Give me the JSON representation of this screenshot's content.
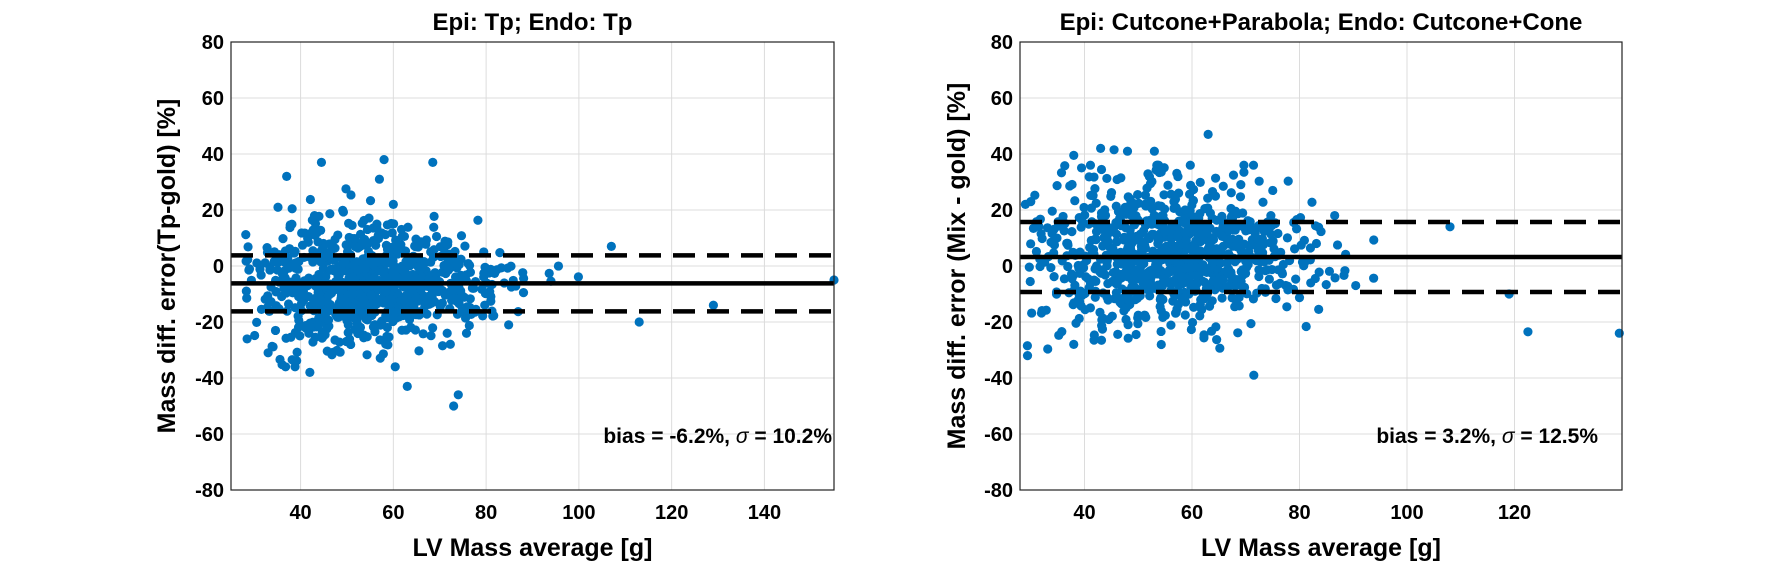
{
  "colors": {
    "points": "#0072BD",
    "lines": "#000000",
    "grid": "#dcdcdc"
  },
  "chart_data": [
    {
      "type": "scatter",
      "title": "Epi: Tp; Endo: Tp",
      "xlabel": "LV Mass average [g]",
      "ylabel": "Mass diff. error(Tp-gold)  [%]",
      "xlim": [
        25,
        155
      ],
      "ylim": [
        -80,
        80
      ],
      "xticks": [
        40,
        60,
        80,
        100,
        120,
        140
      ],
      "yticks": [
        -80,
        -60,
        -40,
        -20,
        0,
        20,
        40,
        60,
        80
      ],
      "grid": true,
      "bias": -6.2,
      "sigma": 10.2,
      "upper_loa": 3.8,
      "lower_loa": -16.2,
      "annotation": {
        "prefix": "bias = -6.2%, ",
        "symbol": "σ",
        "suffix": " = 10.2%"
      },
      "cloud": {
        "mean_x": 55,
        "sd_x": 13,
        "min_x": 27,
        "max_x": 112,
        "sd_y": 10.2,
        "count": 900,
        "seed": 11
      },
      "x": [
        44.5,
        58,
        68.5,
        37,
        57,
        74,
        63,
        73,
        33,
        42,
        43,
        60,
        129,
        155,
        113,
        107
      ],
      "y": [
        37,
        38,
        37,
        32,
        31,
        -46,
        -43,
        -50,
        -31,
        -38,
        18,
        22,
        -14,
        -5,
        -20,
        7
      ]
    },
    {
      "type": "scatter",
      "title": "Epi: Cutcone+Parabola; Endo: Cutcone+Cone",
      "xlabel": "LV Mass average [g]",
      "ylabel": "Mass diff. error (Mix - gold)  [%]",
      "xlim": [
        28,
        140
      ],
      "ylim": [
        -80,
        80
      ],
      "xticks": [
        40,
        60,
        80,
        100,
        120
      ],
      "yticks": [
        -80,
        -60,
        -40,
        -20,
        0,
        20,
        40,
        60,
        80
      ],
      "grid": true,
      "bias": 3.2,
      "sigma": 12.5,
      "upper_loa": 15.7,
      "lower_loa": -9.3,
      "annotation": {
        "prefix": "bias = 3.2%, ",
        "symbol": "σ",
        "suffix": " = 12.5%"
      },
      "cloud": {
        "mean_x": 55,
        "sd_x": 13,
        "min_x": 29,
        "max_x": 112,
        "sd_y": 12.5,
        "count": 900,
        "seed": 23
      },
      "x": [
        63,
        45.5,
        48,
        38,
        43,
        53,
        71.5,
        38,
        122.5,
        139.5,
        119,
        108,
        29,
        30
      ],
      "y": [
        47,
        41.5,
        41,
        39.5,
        42,
        41,
        -39,
        -28,
        -23.5,
        -24,
        -10,
        14,
        22,
        23
      ]
    }
  ]
}
